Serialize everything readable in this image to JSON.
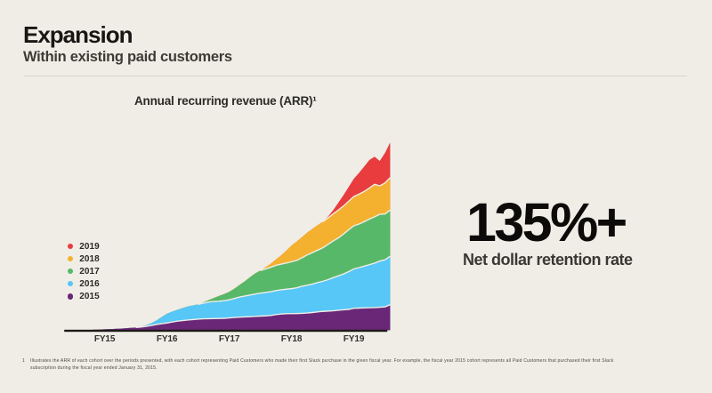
{
  "slide": {
    "title": "Expansion",
    "subtitle": "Within existing paid customers"
  },
  "stat": {
    "value": "135%+",
    "label": "Net dollar retention rate"
  },
  "footnote": {
    "index": "1",
    "text": "Illustrates the ARR of each cohort over the periods presented, with each cohort representing Paid Customers who made their first Slack purchase in the given fiscal year. For example, the fiscal year 2015 cohort represents all Paid Customers that purchased their first Slack subscription during the fiscal year ended January 31, 2015."
  },
  "colors": {
    "background": "#f0ede7",
    "divider": "#d9d5cd",
    "axis": "#1d1b18",
    "title_text": "#191713",
    "subtitle_text": "#3f3c36",
    "stat_text": "#0c0b09",
    "label_text": "#2b2a26",
    "footnote_text": "#4c4840"
  },
  "chart_data": {
    "type": "area",
    "stacked": true,
    "title": "Annual recurring revenue (ARR)¹",
    "x_unit": "month",
    "x_note": "monthly samples, Feb 2014 through a few weeks past fiscal year 2019",
    "categories": [
      "FY15",
      "FY16",
      "FY17",
      "FY18",
      "FY19"
    ],
    "months_per_category": 12,
    "ylim": [
      0,
      100
    ],
    "y_note": "relative ARR, indexed to 100 at the final month (no numeric y-axis shown)",
    "grid": false,
    "legend_position": "left",
    "legend": [
      {
        "label": "2019",
        "color": "#e83c3e"
      },
      {
        "label": "2018",
        "color": "#f3b12f"
      },
      {
        "label": "2017",
        "color": "#58b869"
      },
      {
        "label": "2016",
        "color": "#56c7f7"
      },
      {
        "label": "2015",
        "color": "#6a2777"
      }
    ],
    "series": [
      {
        "name": "2015",
        "color": "#6a2777",
        "values": [
          0.0,
          0.03,
          0.07,
          0.14,
          0.26,
          0.38,
          0.47,
          0.58,
          0.7,
          0.82,
          1.0,
          1.23,
          1.44,
          1.69,
          2.08,
          2.55,
          3.07,
          3.48,
          3.86,
          4.39,
          4.83,
          5.13,
          5.42,
          5.66,
          5.88,
          6.08,
          6.13,
          6.19,
          6.26,
          6.35,
          6.54,
          6.78,
          6.97,
          7.09,
          7.21,
          7.36,
          7.53,
          7.64,
          7.88,
          8.31,
          8.64,
          8.79,
          8.86,
          8.89,
          9.0,
          9.16,
          9.42,
          9.77,
          10.02,
          10.19,
          10.35,
          10.65,
          10.89,
          11.08,
          11.7,
          11.79,
          11.88,
          11.98,
          12.07,
          12.22,
          12.41,
          13.59
        ]
      },
      {
        "name": "2016",
        "color": "#56c7f7",
        "values": [
          0.0,
          0.0,
          0.0,
          0.0,
          0.0,
          0.0,
          0.0,
          0.0,
          0.0,
          0.0,
          0.0,
          0.0,
          0.0,
          0.25,
          0.55,
          1.2,
          2.17,
          3.6,
          4.93,
          5.53,
          6.0,
          6.65,
          7.21,
          7.53,
          7.84,
          8.37,
          8.91,
          9.13,
          9.17,
          9.37,
          9.65,
          10.13,
          10.72,
          11.13,
          11.56,
          11.92,
          12.21,
          12.49,
          12.64,
          12.79,
          12.9,
          13.06,
          13.29,
          13.73,
          14.4,
          14.79,
          15.12,
          15.63,
          16.03,
          16.69,
          17.62,
          18.29,
          19.04,
          20.14,
          20.93,
          21.54,
          22.25,
          22.96,
          23.67,
          24.62,
          25.09,
          25.8
        ]
      },
      {
        "name": "2017",
        "color": "#58b869",
        "values": [
          0.0,
          0.0,
          0.0,
          0.0,
          0.0,
          0.0,
          0.0,
          0.0,
          0.0,
          0.0,
          0.0,
          0.0,
          0.0,
          0.0,
          0.0,
          0.0,
          0.0,
          0.0,
          0.0,
          0.0,
          0.0,
          0.0,
          0.0,
          0.0,
          0.0,
          0.43,
          0.93,
          1.78,
          2.8,
          3.54,
          4.22,
          5.22,
          6.47,
          7.86,
          9.45,
          10.98,
          12.04,
          12.54,
          13.01,
          13.45,
          13.63,
          13.93,
          14.32,
          14.56,
          15.15,
          16.12,
          16.8,
          17.19,
          17.84,
          18.81,
          19.55,
          20.19,
          21.24,
          22.27,
          22.96,
          23.2,
          23.67,
          24.24,
          24.62,
          24.91,
          24.38,
          24.62
        ]
      },
      {
        "name": "2018",
        "color": "#f3b12f",
        "values": [
          0.0,
          0.0,
          0.0,
          0.0,
          0.0,
          0.0,
          0.0,
          0.0,
          0.0,
          0.0,
          0.0,
          0.0,
          0.0,
          0.0,
          0.0,
          0.0,
          0.0,
          0.0,
          0.0,
          0.0,
          0.0,
          0.0,
          0.0,
          0.0,
          0.0,
          0.0,
          0.0,
          0.0,
          0.0,
          0.0,
          0.0,
          0.0,
          0.0,
          0.0,
          0.0,
          0.0,
          0.0,
          0.9,
          1.9,
          3.19,
          4.67,
          6.61,
          8.63,
          10.05,
          11.03,
          11.82,
          12.58,
          13.32,
          13.8,
          14.04,
          14.43,
          14.84,
          14.96,
          15.17,
          15.62,
          15.91,
          16.15,
          16.57,
          17.33,
          15.15,
          16.57,
          17.28
        ]
      },
      {
        "name": "2019",
        "color": "#e83c3e",
        "values": [
          0.0,
          0.0,
          0.0,
          0.0,
          0.0,
          0.0,
          0.0,
          0.0,
          0.0,
          0.0,
          0.0,
          0.0,
          0.0,
          0.0,
          0.0,
          0.0,
          0.0,
          0.0,
          0.0,
          0.0,
          0.0,
          0.0,
          0.0,
          0.0,
          0.0,
          0.0,
          0.0,
          0.0,
          0.0,
          0.0,
          0.0,
          0.0,
          0.0,
          0.0,
          0.0,
          0.0,
          0.0,
          0.0,
          0.0,
          0.0,
          0.0,
          0.0,
          0.0,
          0.0,
          0.0,
          0.0,
          0.0,
          0.0,
          0.0,
          0.71,
          1.9,
          3.85,
          5.8,
          7.66,
          9.47,
          11.36,
          13.26,
          14.91,
          14.68,
          13.26,
          15.96,
          18.7
        ]
      }
    ]
  }
}
